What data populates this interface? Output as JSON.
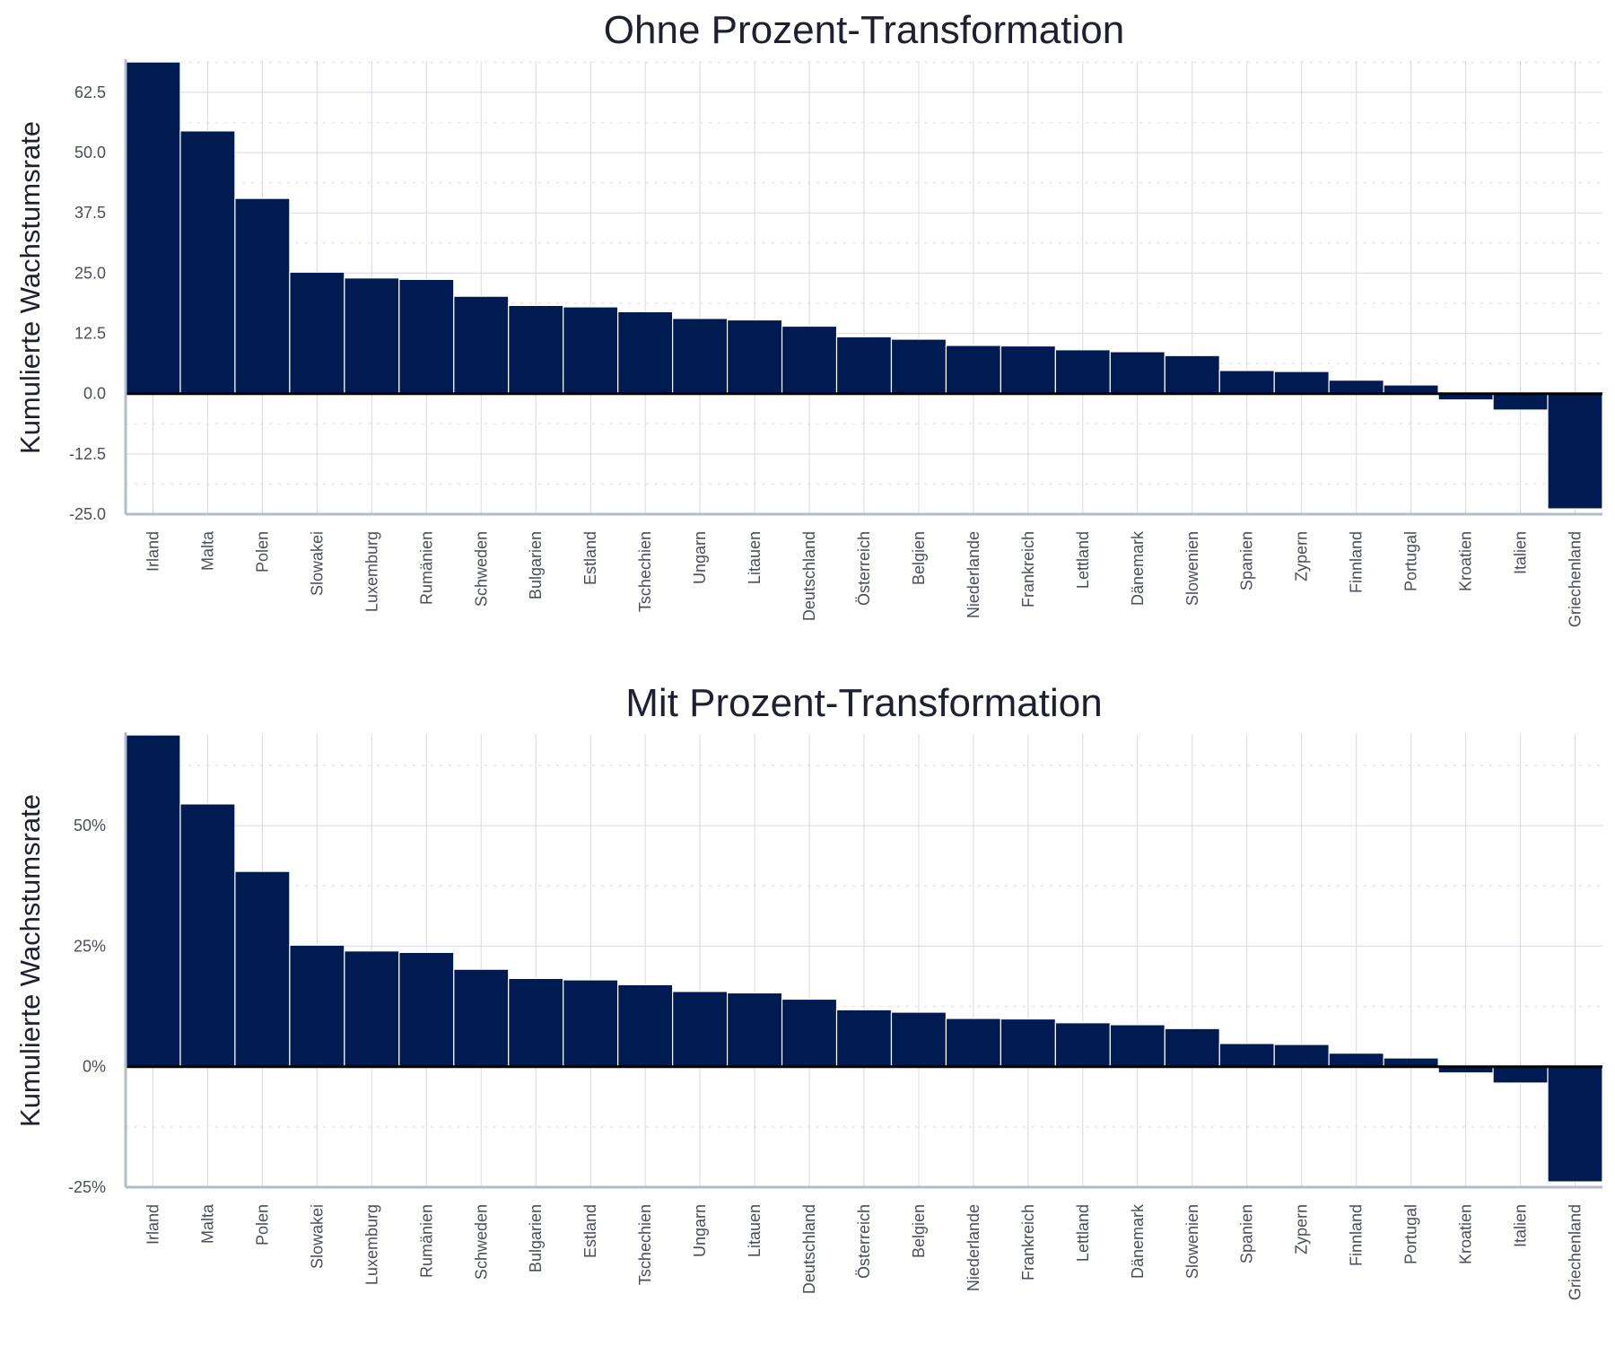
{
  "colors": {
    "bar": "#001a52",
    "bar_edge": "#ffffff",
    "axis": "#b4bccb",
    "grid_major": "#d6dae2",
    "grid_minor": "#e4e7ed",
    "zero_line": "#000000",
    "text": "#1e2030",
    "tick_text": "#4a4e5a"
  },
  "chart_data": [
    {
      "type": "bar",
      "title": "Ohne Prozent-Transformation",
      "xlabel": "",
      "ylabel": "Kumulierte Wachstumsrate",
      "ylim": [
        -25,
        69
      ],
      "yticks": [
        -25,
        -12.5,
        0,
        12.5,
        25,
        37.5,
        50,
        62.5
      ],
      "ytick_labels": [
        "-25.0",
        "-12.5",
        "0.0",
        "12.5",
        "25.0",
        "37.5",
        "50.0",
        "62.5"
      ],
      "grid": true,
      "categories": [
        "Irland",
        "Malta",
        "Polen",
        "Slowakei",
        "Luxemburg",
        "Rumänien",
        "Schweden",
        "Bulgarien",
        "Estland",
        "Tschechien",
        "Ungarn",
        "Litauen",
        "Deutschland",
        "Österreich",
        "Belgien",
        "Niederlande",
        "Frankreich",
        "Lettland",
        "Dänemark",
        "Slowenien",
        "Spanien",
        "Zypern",
        "Finnland",
        "Portugal",
        "Kroatien",
        "Italien",
        "Griechenland"
      ],
      "values": [
        68.8,
        54.5,
        40.5,
        25.2,
        24.0,
        23.7,
        20.2,
        18.3,
        18.0,
        17.0,
        15.6,
        15.3,
        14.0,
        11.8,
        11.3,
        10.0,
        9.9,
        9.1,
        8.7,
        7.9,
        4.8,
        4.6,
        2.8,
        1.8,
        -1.3,
        -3.4,
        -23.9
      ]
    },
    {
      "type": "bar",
      "title": "Mit Prozent-Transformation",
      "xlabel": "",
      "ylabel": "Kumulierte Wachstumsrate",
      "ylim": [
        -25,
        69
      ],
      "yticks": [
        -25,
        0,
        25,
        50
      ],
      "ytick_labels": [
        "-25%",
        "0%",
        "25%",
        "50%"
      ],
      "grid": true,
      "categories": [
        "Irland",
        "Malta",
        "Polen",
        "Slowakei",
        "Luxemburg",
        "Rumänien",
        "Schweden",
        "Bulgarien",
        "Estland",
        "Tschechien",
        "Ungarn",
        "Litauen",
        "Deutschland",
        "Österreich",
        "Belgien",
        "Niederlande",
        "Frankreich",
        "Lettland",
        "Dänemark",
        "Slowenien",
        "Spanien",
        "Zypern",
        "Finnland",
        "Portugal",
        "Kroatien",
        "Italien",
        "Griechenland"
      ],
      "values": [
        68.8,
        54.5,
        40.5,
        25.2,
        24.0,
        23.7,
        20.2,
        18.3,
        18.0,
        17.0,
        15.6,
        15.3,
        14.0,
        11.8,
        11.3,
        10.0,
        9.9,
        9.1,
        8.7,
        7.9,
        4.8,
        4.6,
        2.8,
        1.8,
        -1.3,
        -3.4,
        -23.9
      ]
    }
  ]
}
